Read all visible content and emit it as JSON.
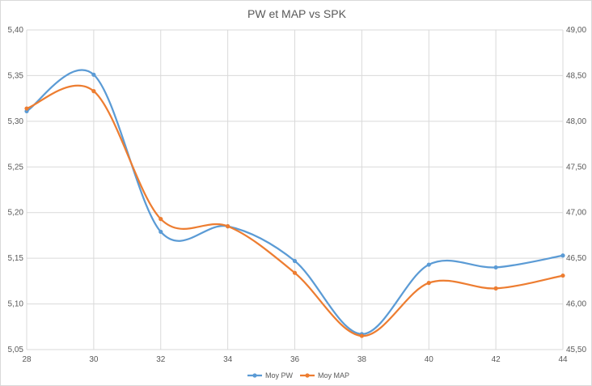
{
  "chart_data": {
    "type": "line",
    "title": "PW et MAP vs SPK",
    "xlabel": "",
    "ylabel": "",
    "x": [
      28,
      30,
      32,
      34,
      36,
      38,
      40,
      42,
      44
    ],
    "xlim": [
      28,
      44
    ],
    "x_ticks": [
      "28",
      "30",
      "32",
      "34",
      "36",
      "38",
      "40",
      "42",
      "44"
    ],
    "y_left_lim": [
      5.05,
      5.4
    ],
    "y_left_ticks": [
      "5,05",
      "5,10",
      "5,15",
      "5,20",
      "5,25",
      "5,30",
      "5,35",
      "5,40"
    ],
    "y_right_lim": [
      45.5,
      49.0
    ],
    "y_right_ticks": [
      "45,50",
      "46,00",
      "46,50",
      "47,00",
      "47,50",
      "48,00",
      "48,50",
      "49,00"
    ],
    "series": [
      {
        "name": "Moy PW",
        "axis": "left",
        "color": "#5b9bd5",
        "values": [
          5.311,
          5.351,
          5.179,
          5.185,
          5.147,
          5.067,
          5.143,
          5.14,
          5.153
        ]
      },
      {
        "name": "Moy MAP",
        "axis": "right",
        "color": "#ed7d31",
        "values": [
          48.14,
          48.33,
          46.93,
          46.85,
          46.34,
          45.65,
          46.23,
          46.17,
          46.31
        ]
      }
    ],
    "legend": "bottom",
    "grid": true,
    "smooth": true
  }
}
